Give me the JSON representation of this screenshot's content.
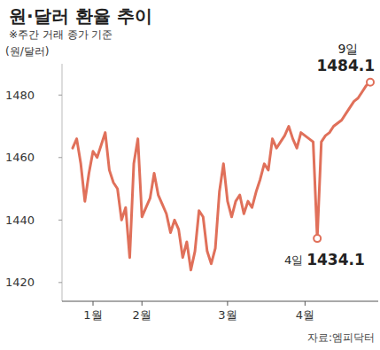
{
  "chart_data": {
    "type": "line",
    "title": "원·달러 환율 추이",
    "subtitle": "※주간 거래 종가 기준",
    "y_label": "(원/달러)",
    "source": "자료:엠피닥터",
    "categories": [
      null,
      null,
      null,
      null,
      null,
      "1월",
      null,
      null,
      null,
      null,
      null,
      null,
      null,
      null,
      null,
      null,
      null,
      "2월",
      null,
      null,
      null,
      null,
      null,
      null,
      null,
      null,
      null,
      null,
      null,
      null,
      null,
      null,
      null,
      null,
      null,
      null,
      null,
      null,
      "3월",
      null,
      null,
      null,
      null,
      null,
      null,
      null,
      null,
      null,
      null,
      null,
      null,
      null,
      null,
      null,
      null,
      null,
      null,
      "4월",
      null,
      null,
      null,
      null,
      null,
      null,
      null,
      null,
      null,
      null,
      null,
      null,
      null,
      null,
      null,
      null
    ],
    "values": [
      1463,
      1466,
      1458,
      1446,
      1455,
      1462,
      1460,
      1464,
      1468,
      1456,
      1452,
      1450,
      1440,
      1444,
      1428,
      1458,
      1466,
      1441,
      1444,
      1447,
      1455,
      1448,
      1445,
      1442,
      1436,
      1440,
      1437,
      1428,
      1433,
      1424,
      1430,
      1443,
      1441,
      1430,
      1426,
      1431,
      1449,
      1458,
      1446,
      1441,
      1446,
      1448,
      1442,
      1446,
      1444,
      1449,
      1453,
      1458,
      1456,
      1466,
      1463,
      1465,
      1467,
      1470,
      1466,
      1463,
      1468,
      1467,
      1466,
      1465,
      1434.1,
      1465,
      1467,
      1468,
      1470,
      1471,
      1472,
      1474,
      1476,
      1478,
      1479,
      1481,
      1483,
      1484.1
    ],
    "color": "#e0705a",
    "ylim": [
      1414,
      1490
    ],
    "yticks": [
      1420,
      1440,
      1460,
      1480
    ],
    "grid": false,
    "annotations": [
      {
        "text": "9일",
        "value": 1484.1
      },
      {
        "text": "4일",
        "value": 1434.1
      }
    ]
  }
}
